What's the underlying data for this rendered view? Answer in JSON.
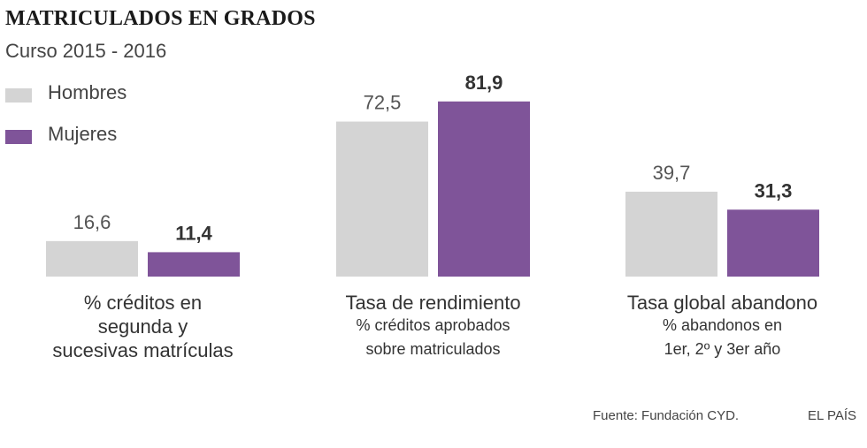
{
  "header": {
    "title": "MATRICULADOS EN GRADOS",
    "subtitle": "Curso 2015 - 2016"
  },
  "legend": [
    {
      "label": "Hombres",
      "color": "#d4d4d4"
    },
    {
      "label": "Mujeres",
      "color": "#7f5499"
    }
  ],
  "chart_data": {
    "type": "bar",
    "categories": [
      [
        "% créditos en",
        "segunda y",
        "sucesivas matrículas"
      ],
      [
        "Tasa de rendimiento",
        "% créditos aprobados",
        "sobre matriculados"
      ],
      [
        "Tasa global abandono",
        "% abandonos en",
        "1er, 2º y 3er año"
      ]
    ],
    "series": [
      {
        "name": "Hombres",
        "values": [
          16.6,
          72.5,
          39.7
        ],
        "labels": [
          "16,6",
          "72,5",
          "39,7"
        ],
        "color": "#d4d4d4",
        "label_bold": false
      },
      {
        "name": "Mujeres",
        "values": [
          11.4,
          81.9,
          31.3
        ],
        "labels": [
          "11,4",
          "81,9",
          "31,3"
        ],
        "color": "#7f5499",
        "label_bold": true
      }
    ],
    "ylim": [
      0,
      100
    ],
    "grid": false,
    "legend_position": "top-left"
  },
  "footer": {
    "source": "Fuente: Fundación CYD.",
    "credit": "EL PAÍS"
  }
}
